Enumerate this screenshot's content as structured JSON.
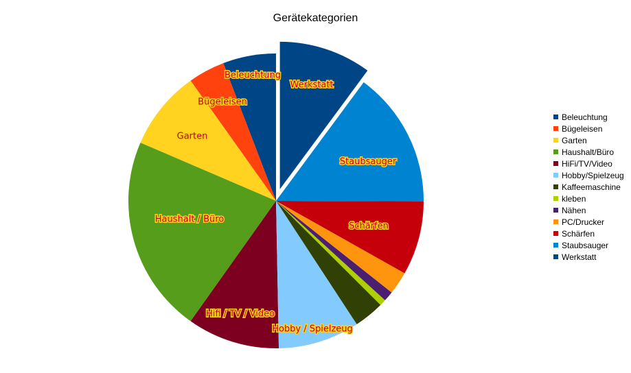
{
  "chart_data": {
    "type": "pie",
    "title": "Gerätekategorien",
    "unit_note": null,
    "legend_position": "right",
    "series": [
      {
        "name": "Beleuchtung",
        "label": "Beleuchtung",
        "value": 5.8,
        "color": "#004586"
      },
      {
        "name": "Bügeleisen",
        "label": "Bügeleisen",
        "value": 4.0,
        "color": "#ff420e"
      },
      {
        "name": "Garten",
        "label": "Garten",
        "value": 8.7,
        "color": "#ffd320"
      },
      {
        "name": "Haushalt/Büro",
        "label": "Haushalt / Büro",
        "value": 21.6,
        "color": "#579d1c"
      },
      {
        "name": "HiFi/TV/Video",
        "label": "Hifi / TV / Video",
        "value": 10.1,
        "color": "#7e0021"
      },
      {
        "name": "Hobby/Spielzeug",
        "label": "Hobby / Spielzeug",
        "value": 8.9,
        "color": "#83caff"
      },
      {
        "name": "Kaffeemaschine",
        "label": "",
        "value": 3.3,
        "color": "#314004"
      },
      {
        "name": "kleben",
        "label": "",
        "value": 0.7,
        "color": "#aecf00"
      },
      {
        "name": "Nähen",
        "label": "",
        "value": 1.1,
        "color": "#4b1f6f"
      },
      {
        "name": "PC/Drucker",
        "label": "",
        "value": 2.5,
        "color": "#ff950e"
      },
      {
        "name": "Schärfen",
        "label": "Schärfen",
        "value": 8.1,
        "color": "#c5000b"
      },
      {
        "name": "Staubsauger",
        "label": "Staubsauger",
        "value": 14.9,
        "color": "#0084d1"
      },
      {
        "name": "Werkstatt",
        "label": "Werkstatt",
        "value": 10.1,
        "color": "#004586",
        "exploded": true
      }
    ]
  }
}
